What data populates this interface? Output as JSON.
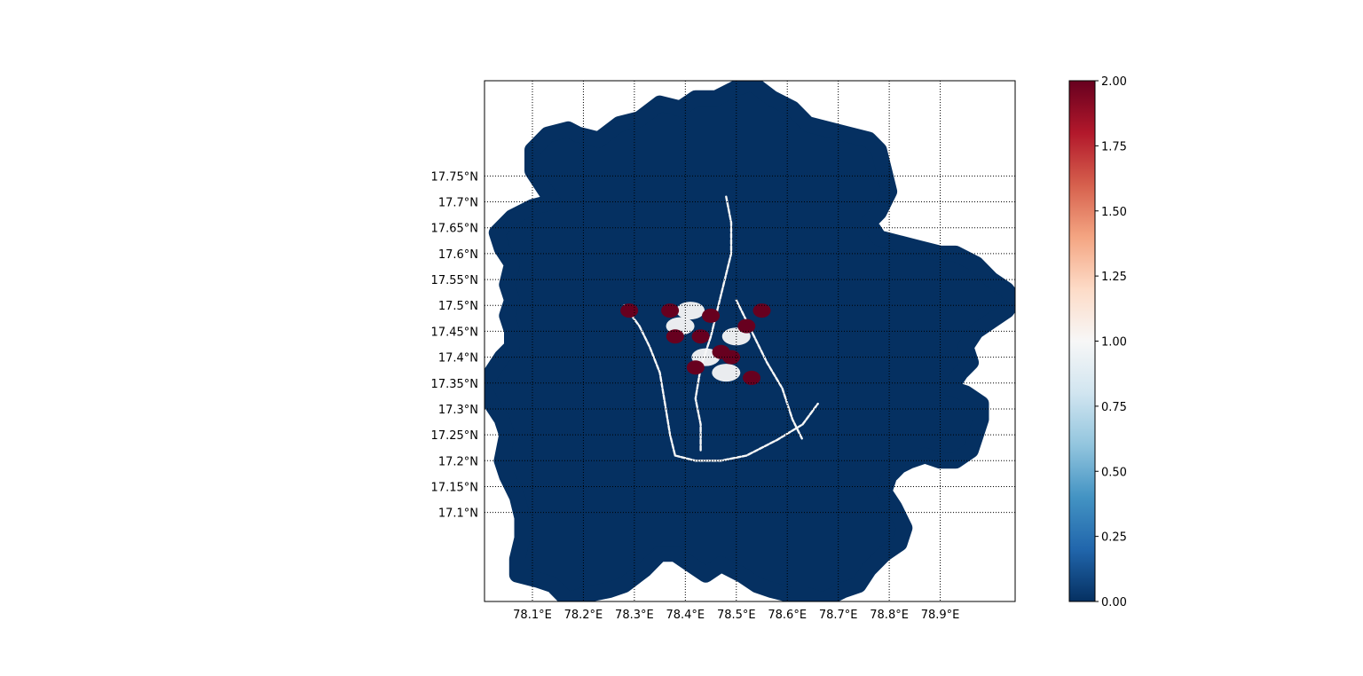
{
  "chart_data": {
    "type": "heatmap",
    "title": "",
    "xlabel": "",
    "ylabel": "",
    "xlim": [
      78.006,
      79.047
    ],
    "ylim": [
      16.928,
      17.934
    ],
    "x_ticks": [
      {
        "value": 78.1,
        "label": "78.1°E"
      },
      {
        "value": 78.2,
        "label": "78.2°E"
      },
      {
        "value": 78.3,
        "label": "78.3°E"
      },
      {
        "value": 78.4,
        "label": "78.4°E"
      },
      {
        "value": 78.5,
        "label": "78.5°E"
      },
      {
        "value": 78.6,
        "label": "78.6°E"
      },
      {
        "value": 78.7,
        "label": "78.7°E"
      },
      {
        "value": 78.8,
        "label": "78.8°E"
      },
      {
        "value": 78.9,
        "label": "78.9°E"
      }
    ],
    "y_ticks": [
      {
        "value": 17.75,
        "label": "17.75°N"
      },
      {
        "value": 17.7,
        "label": "17.7°N"
      },
      {
        "value": 17.65,
        "label": "17.65°N"
      },
      {
        "value": 17.6,
        "label": "17.6°N"
      },
      {
        "value": 17.55,
        "label": "17.55°N"
      },
      {
        "value": 17.5,
        "label": "17.5°N"
      },
      {
        "value": 17.45,
        "label": "17.45°N"
      },
      {
        "value": 17.4,
        "label": "17.4°N"
      },
      {
        "value": 17.35,
        "label": "17.35°N"
      },
      {
        "value": 17.3,
        "label": "17.3°N"
      },
      {
        "value": 17.25,
        "label": "17.25°N"
      },
      {
        "value": 17.2,
        "label": "17.2°N"
      },
      {
        "value": 17.15,
        "label": "17.15°N"
      },
      {
        "value": 17.1,
        "label": "17.1°N"
      }
    ],
    "grid": "dotted",
    "colormap": "RdBu_r",
    "colorbar": {
      "min": 0.0,
      "max": 2.0,
      "ticks": [
        {
          "value": 0.0,
          "label": "0.00"
        },
        {
          "value": 0.25,
          "label": "0.25"
        },
        {
          "value": 0.5,
          "label": "0.50"
        },
        {
          "value": 0.75,
          "label": "0.75"
        },
        {
          "value": 1.0,
          "label": "1.00"
        },
        {
          "value": 1.25,
          "label": "1.25"
        },
        {
          "value": 1.5,
          "label": "1.50"
        },
        {
          "value": 1.75,
          "label": "1.75"
        },
        {
          "value": 2.0,
          "label": "2.00"
        }
      ],
      "colors": [
        "#053061",
        "#2166ac",
        "#4393c3",
        "#92c5de",
        "#d1e5f0",
        "#f7f7f7",
        "#fddbc7",
        "#f4a582",
        "#d6604d",
        "#b2182b",
        "#67001f"
      ]
    },
    "region_value": 0.0,
    "region_outline": [
      [
        78.1,
        17.8
      ],
      [
        78.13,
        17.83
      ],
      [
        78.17,
        17.84
      ],
      [
        78.19,
        17.83
      ],
      [
        78.23,
        17.82
      ],
      [
        78.27,
        17.85
      ],
      [
        78.31,
        17.86
      ],
      [
        78.35,
        17.89
      ],
      [
        78.39,
        17.88
      ],
      [
        78.42,
        17.9
      ],
      [
        78.46,
        17.9
      ],
      [
        78.5,
        17.92
      ],
      [
        78.53,
        17.93
      ],
      [
        78.57,
        17.9
      ],
      [
        78.61,
        17.88
      ],
      [
        78.64,
        17.85
      ],
      [
        78.68,
        17.84
      ],
      [
        78.72,
        17.83
      ],
      [
        78.76,
        17.82
      ],
      [
        78.78,
        17.8
      ],
      [
        78.79,
        17.76
      ],
      [
        78.8,
        17.72
      ],
      [
        78.78,
        17.68
      ],
      [
        78.76,
        17.66
      ],
      [
        78.78,
        17.63
      ],
      [
        78.82,
        17.62
      ],
      [
        78.86,
        17.61
      ],
      [
        78.9,
        17.6
      ],
      [
        78.93,
        17.6
      ],
      [
        78.97,
        17.58
      ],
      [
        79.0,
        17.55
      ],
      [
        79.03,
        17.53
      ],
      [
        79.045,
        17.51
      ],
      [
        79.03,
        17.49
      ],
      [
        79.0,
        17.47
      ],
      [
        78.97,
        17.45
      ],
      [
        78.95,
        17.42
      ],
      [
        78.96,
        17.39
      ],
      [
        78.94,
        17.37
      ],
      [
        78.92,
        17.34
      ],
      [
        78.95,
        17.33
      ],
      [
        78.98,
        17.31
      ],
      [
        78.98,
        17.28
      ],
      [
        78.97,
        17.25
      ],
      [
        78.96,
        17.22
      ],
      [
        78.93,
        17.2
      ],
      [
        78.9,
        17.2
      ],
      [
        78.87,
        17.21
      ],
      [
        78.84,
        17.2
      ],
      [
        78.82,
        17.19
      ],
      [
        78.8,
        17.17
      ],
      [
        78.79,
        17.14
      ],
      [
        78.81,
        17.11
      ],
      [
        78.83,
        17.07
      ],
      [
        78.82,
        17.04
      ],
      [
        78.79,
        17.02
      ],
      [
        78.76,
        16.99
      ],
      [
        78.74,
        16.96
      ],
      [
        78.71,
        16.95
      ],
      [
        78.67,
        16.93
      ],
      [
        78.64,
        16.94
      ],
      [
        78.61,
        16.94
      ],
      [
        78.57,
        16.95
      ],
      [
        78.54,
        16.96
      ],
      [
        78.51,
        16.98
      ],
      [
        78.47,
        17.0
      ],
      [
        78.44,
        16.98
      ],
      [
        78.41,
        17.0
      ],
      [
        78.38,
        17.02
      ],
      [
        78.35,
        17.02
      ],
      [
        78.32,
        16.99
      ],
      [
        78.28,
        16.96
      ],
      [
        78.25,
        16.95
      ],
      [
        78.2,
        16.94
      ],
      [
        78.17,
        16.93
      ],
      [
        78.14,
        16.96
      ],
      [
        78.11,
        16.97
      ],
      [
        78.07,
        16.98
      ],
      [
        78.07,
        17.01
      ],
      [
        78.08,
        17.05
      ],
      [
        78.08,
        17.09
      ],
      [
        78.07,
        17.13
      ],
      [
        78.05,
        17.17
      ],
      [
        78.04,
        17.2
      ],
      [
        78.05,
        17.25
      ],
      [
        78.04,
        17.28
      ],
      [
        78.02,
        17.31
      ],
      [
        78.005,
        17.34
      ],
      [
        78.02,
        17.37
      ],
      [
        78.04,
        17.4
      ],
      [
        78.06,
        17.42
      ],
      [
        78.06,
        17.45
      ],
      [
        78.05,
        17.48
      ],
      [
        78.06,
        17.51
      ],
      [
        78.05,
        17.54
      ],
      [
        78.06,
        17.58
      ],
      [
        78.04,
        17.61
      ],
      [
        78.03,
        17.64
      ],
      [
        78.06,
        17.67
      ],
      [
        78.1,
        17.69
      ],
      [
        78.14,
        17.7
      ],
      [
        78.12,
        17.73
      ],
      [
        78.1,
        17.76
      ],
      [
        78.1,
        17.8
      ]
    ],
    "low_value_band_segments": [
      [
        [
          78.48,
          17.71
        ],
        [
          78.49,
          17.66
        ],
        [
          78.49,
          17.6
        ],
        [
          78.47,
          17.52
        ],
        [
          78.45,
          17.44
        ],
        [
          78.43,
          17.38
        ],
        [
          78.42,
          17.32
        ],
        [
          78.43,
          17.27
        ],
        [
          78.43,
          17.22
        ]
      ],
      [
        [
          78.28,
          17.5
        ],
        [
          78.31,
          17.46
        ],
        [
          78.33,
          17.42
        ],
        [
          78.35,
          17.37
        ],
        [
          78.36,
          17.31
        ],
        [
          78.37,
          17.25
        ],
        [
          78.38,
          17.21
        ]
      ],
      [
        [
          78.38,
          17.21
        ],
        [
          78.42,
          17.2
        ],
        [
          78.47,
          17.2
        ],
        [
          78.52,
          17.21
        ],
        [
          78.58,
          17.24
        ],
        [
          78.63,
          17.27
        ],
        [
          78.66,
          17.31
        ]
      ],
      [
        [
          78.5,
          17.51
        ],
        [
          78.53,
          17.45
        ],
        [
          78.56,
          17.39
        ],
        [
          78.59,
          17.34
        ],
        [
          78.61,
          17.28
        ],
        [
          78.63,
          17.24
        ]
      ]
    ],
    "high_value_patches": [
      {
        "x": 78.43,
        "y": 17.44,
        "value": 2.0
      },
      {
        "x": 78.47,
        "y": 17.41,
        "value": 2.0
      },
      {
        "x": 78.53,
        "y": 17.36,
        "value": 2.0
      },
      {
        "x": 78.52,
        "y": 17.46,
        "value": 2.0
      },
      {
        "x": 78.55,
        "y": 17.49,
        "value": 2.0
      },
      {
        "x": 78.37,
        "y": 17.49,
        "value": 2.0
      },
      {
        "x": 78.29,
        "y": 17.49,
        "value": 2.0
      },
      {
        "x": 78.45,
        "y": 17.48,
        "value": 2.0
      },
      {
        "x": 78.49,
        "y": 17.4,
        "value": 2.0
      },
      {
        "x": 78.42,
        "y": 17.38,
        "value": 2.0
      },
      {
        "x": 78.38,
        "y": 17.44,
        "value": 2.0
      }
    ],
    "light_value_patches": [
      {
        "x": 78.41,
        "y": 17.49,
        "value": 1.0
      },
      {
        "x": 78.44,
        "y": 17.4,
        "value": 1.0
      },
      {
        "x": 78.48,
        "y": 17.37,
        "value": 1.0
      },
      {
        "x": 78.5,
        "y": 17.44,
        "value": 1.0
      },
      {
        "x": 78.39,
        "y": 17.46,
        "value": 1.0
      }
    ]
  }
}
